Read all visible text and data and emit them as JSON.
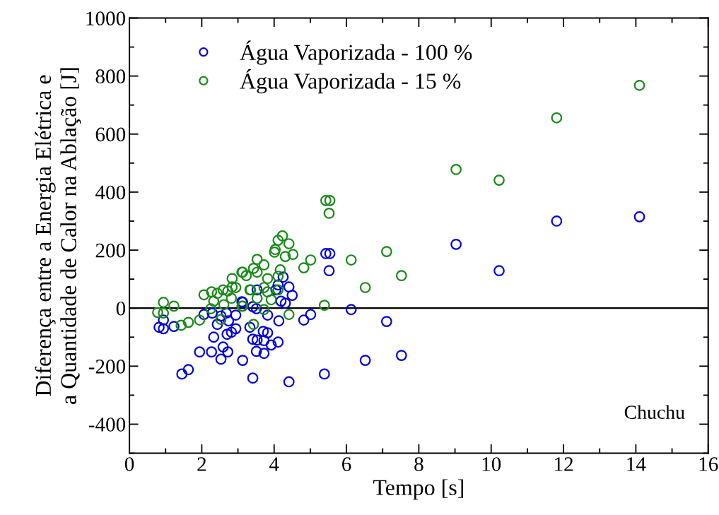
{
  "chart_data": {
    "type": "scatter",
    "xlabel": "Tempo [s]",
    "ylabel": "Diferença entre a Energia Elétrica e\na Quantidade de Calor na Ablação [J]",
    "xlim": [
      0,
      16
    ],
    "xticks": [
      0,
      2,
      4,
      6,
      8,
      10,
      12,
      14,
      16
    ],
    "ylim": [
      -500,
      1000
    ],
    "yticks": [
      -400,
      -200,
      0,
      200,
      400,
      600,
      800,
      1000
    ],
    "grid": false,
    "legend": "top left",
    "marker": "circle",
    "ref_lines": [
      {
        "axis": "y",
        "value": 0,
        "color": "#000000"
      }
    ],
    "annotations": [
      "Chuchu"
    ],
    "series": [
      {
        "name": "Água Vaporizada - 100 %",
        "color": "#0000dd",
        "x": [
          0.82,
          0.94,
          0.94,
          1.23,
          1.45,
          1.63,
          1.94,
          2.27,
          2.33,
          2.06,
          2.29,
          2.53,
          2.59,
          2.72,
          2.43,
          2.74,
          2.7,
          2.82,
          2.94,
          2.94,
          2.53,
          3.13,
          3.41,
          3.41,
          3.11,
          2.68,
          4.41,
          5.39,
          5.43,
          5.54,
          5.52,
          3.51,
          3.72,
          3.53,
          3.72,
          3.82,
          3.7,
          3.92,
          4.11,
          3.33,
          4.13,
          4.82,
          5.01,
          3.82,
          3.51,
          3.13,
          3.41,
          4.31,
          4.5,
          4.41,
          4.19,
          4.25,
          4.11,
          4.05,
          3.53,
          6.13,
          6.52,
          7.11,
          7.52,
          9.03,
          10.22,
          11.81,
          14.1
        ],
        "values": [
          -66,
          -71,
          -41,
          -63,
          -227,
          -212,
          -151,
          -151,
          -100,
          -22,
          -17,
          -176,
          -134,
          -151,
          -56,
          -44,
          -90,
          -83,
          -71,
          -24,
          -27,
          -180,
          -241,
          -107,
          22,
          -17,
          -254,
          -227,
          188,
          188,
          129,
          -149,
          -156,
          -110,
          -112,
          -85,
          -80,
          -127,
          -117,
          -66,
          -44,
          -41,
          -22,
          -24,
          -2,
          20,
          5,
          17,
          44,
          73,
          24,
          107,
          80,
          63,
          63,
          -5,
          -180,
          -46,
          -163,
          220,
          129,
          300,
          315
        ]
      },
      {
        "name": "Água Vaporizada - 15 %",
        "color": "#1a8a1a",
        "x": [
          0.94,
          1.23,
          0.78,
          0.94,
          1.43,
          1.63,
          1.94,
          2.06,
          2.27,
          2.33,
          2.25,
          2.43,
          2.53,
          2.84,
          2.61,
          2.94,
          2.72,
          2.82,
          3.11,
          3.23,
          3.35,
          3.11,
          2.59,
          2.84,
          4.23,
          4.11,
          4.41,
          4.03,
          4.01,
          4.31,
          4.52,
          5.01,
          4.82,
          3.53,
          3.72,
          3.43,
          3.53,
          4.17,
          4.11,
          3.82,
          3.13,
          3.33,
          3.72,
          3.82,
          4.11,
          3.53,
          3.92,
          3.13,
          3.72,
          4.41,
          3.43,
          5.39,
          5.43,
          5.54,
          5.52,
          6.13,
          6.52,
          7.11,
          7.52,
          9.03,
          10.22,
          11.81,
          14.1
        ],
        "values": [
          20,
          7,
          -15,
          -17,
          -59,
          -49,
          -41,
          46,
          56,
          24,
          -2,
          51,
          -39,
          102,
          12,
          71,
          59,
          34,
          124,
          112,
          63,
          7,
          63,
          73,
          249,
          234,
          222,
          202,
          193,
          178,
          185,
          166,
          139,
          168,
          149,
          137,
          124,
          132,
          110,
          102,
          124,
          63,
          71,
          56,
          63,
          34,
          29,
          7,
          -5,
          -22,
          -56,
          10,
          371,
          371,
          327,
          166,
          71,
          195,
          112,
          478,
          441,
          656,
          768
        ]
      }
    ]
  }
}
